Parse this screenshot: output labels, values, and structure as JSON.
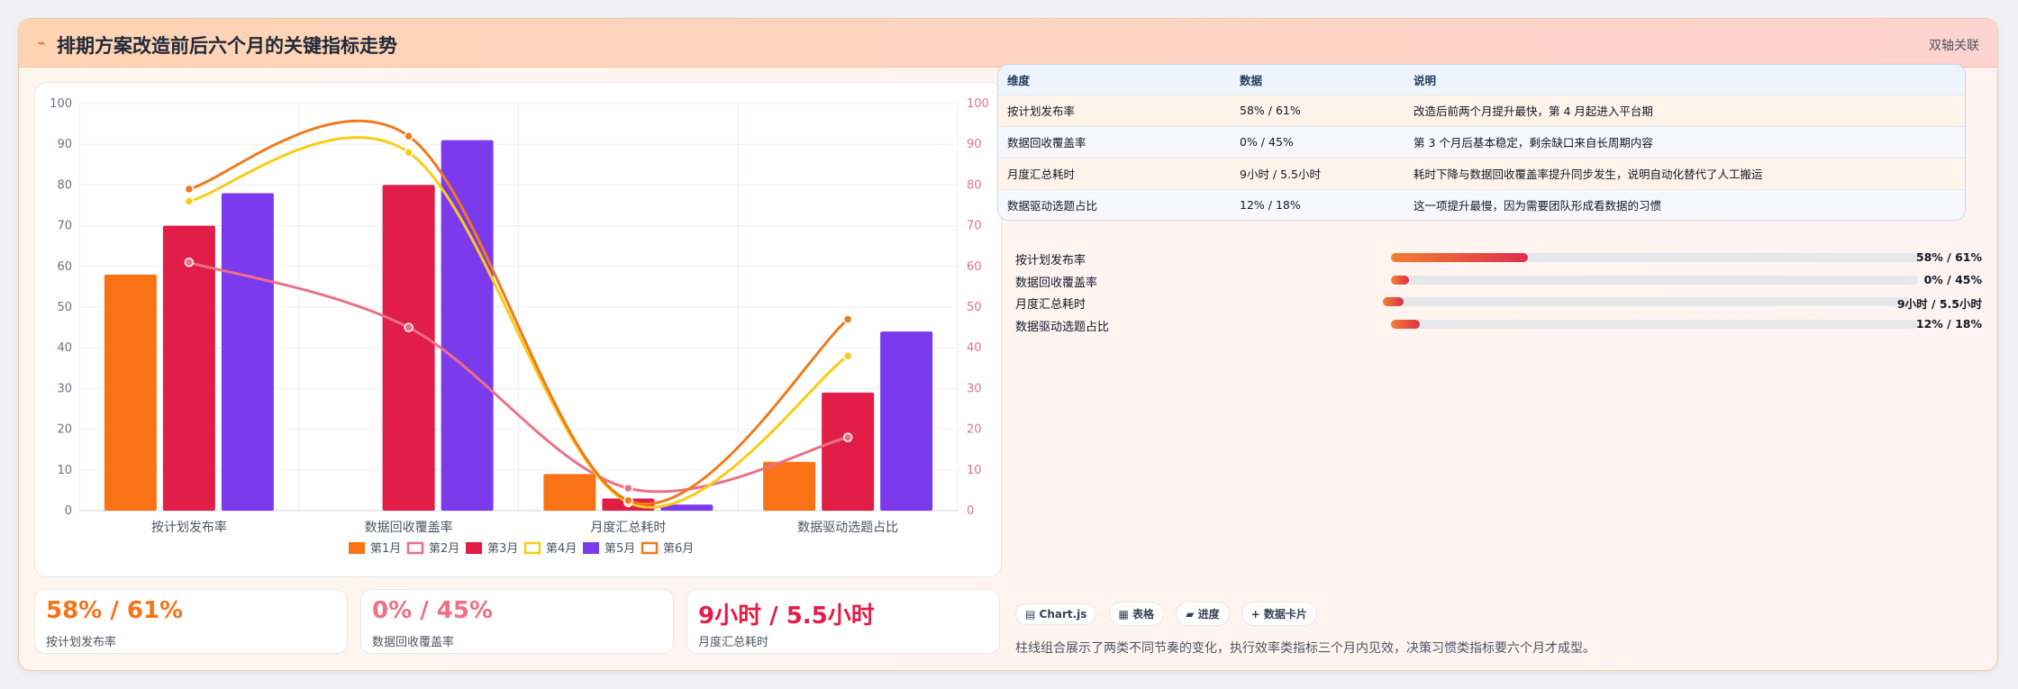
{
  "header": {
    "title_icon": "⌁",
    "title": "排期方案改造前后六个月的关键指标走势",
    "badge": "双轴关联"
  },
  "chart_data": {
    "type": "bar",
    "categories": [
      "按计划发布率",
      "数据回收覆盖率",
      "月度汇总耗时",
      "数据驱动选题占比"
    ],
    "left_ylim": [
      0,
      100
    ],
    "right_ylim": [
      0,
      100
    ],
    "ticks": [
      0,
      10,
      20,
      30,
      40,
      50,
      60,
      70,
      80,
      90,
      100
    ],
    "series": [
      {
        "name": "第1月",
        "kind": "bar",
        "color": "#f97316",
        "values": [
          58,
          0,
          9,
          12
        ]
      },
      {
        "name": "第2月",
        "kind": "line",
        "color": "#ee6f86",
        "values": [
          61,
          45,
          5.5,
          18
        ]
      },
      {
        "name": "第3月",
        "kind": "bar",
        "color": "#e11d48",
        "values": [
          70,
          80,
          3,
          29
        ]
      },
      {
        "name": "第4月",
        "kind": "line",
        "color": "#facc15",
        "values": [
          76,
          88,
          2,
          38
        ]
      },
      {
        "name": "第5月",
        "kind": "bar",
        "color": "#7c3aed",
        "values": [
          78,
          91,
          1.5,
          44
        ]
      },
      {
        "name": "第6月",
        "kind": "line",
        "color": "#f07a1e",
        "values": [
          79,
          92,
          2.5,
          47
        ]
      }
    ]
  },
  "table": {
    "headers": [
      "维度",
      "数据",
      "说明"
    ],
    "rows": [
      [
        "按计划发布率",
        "58% / 61%",
        "改造后前两个月提升最快，第 4 月起进入平台期"
      ],
      [
        "数据回收覆盖率",
        "0% / 45%",
        "第 3 个月后基本稳定，剩余缺口来自长周期内容"
      ],
      [
        "月度汇总耗时",
        "9小时 / 5.5小时",
        "耗时下降与数据回收覆盖率提升同步发生，说明自动化替代了人工搬运"
      ],
      [
        "数据驱动选题占比",
        "12% / 18%",
        "这一项提升最慢，因为需要团队形成看数据的习惯"
      ]
    ]
  },
  "progress": [
    {
      "label": "按计划发布率",
      "value": "58% / 61%",
      "fraction": 0.26
    },
    {
      "label": "数据回收覆盖率",
      "value": "0% / 45%",
      "fraction": 0.035
    },
    {
      "label": "月度汇总耗时",
      "value": "9小时 / 5.5小时",
      "fraction": 0.04
    },
    {
      "label": "数据驱动选题占比",
      "value": "12% / 18%",
      "fraction": 0.055
    }
  ],
  "kpis": [
    {
      "value": "58% / 61%",
      "label": "按计划发布率",
      "color": "#f97316"
    },
    {
      "value": "0% / 45%",
      "label": "数据回收覆盖率",
      "color": "#ef6f86"
    },
    {
      "value": "9小时 / 5.5小时",
      "label": "月度汇总耗时",
      "color": "#e11d48"
    }
  ],
  "chips": [
    "▤ Chart.js",
    "▦ 表格",
    "▰ 进度",
    "+ 数据卡片"
  ],
  "note": "柱线组合展示了两类不同节奏的变化，执行效率类指标三个月内见效，决策习惯类指标要六个月才成型。"
}
